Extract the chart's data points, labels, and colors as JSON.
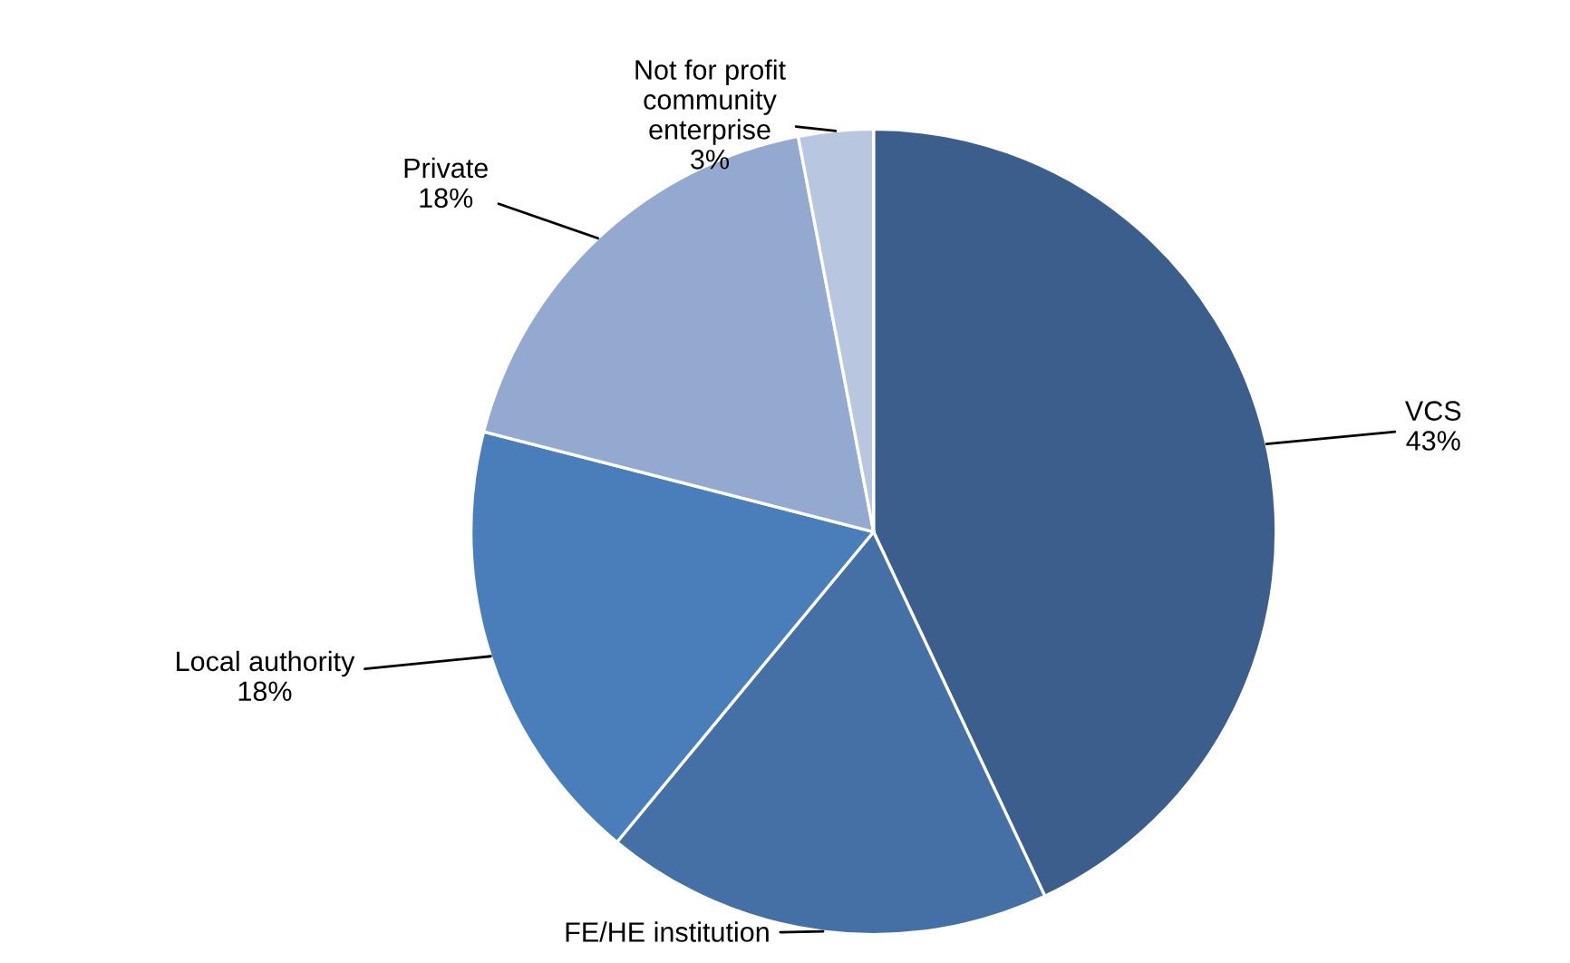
{
  "chart_data": {
    "type": "pie",
    "categories": [
      "VCS",
      "FE/HE institution",
      "Local authority",
      "Private",
      "Not for profit\ncommunity\nenterprise"
    ],
    "values": [
      43,
      18,
      18,
      18,
      3
    ],
    "value_labels": [
      "43%",
      null,
      "18%",
      "18%",
      "3%"
    ],
    "colors": [
      "#3b5e8c",
      "#4470a5",
      "#4a7ebb",
      "#94a9cf",
      "#b9c6e0"
    ]
  }
}
